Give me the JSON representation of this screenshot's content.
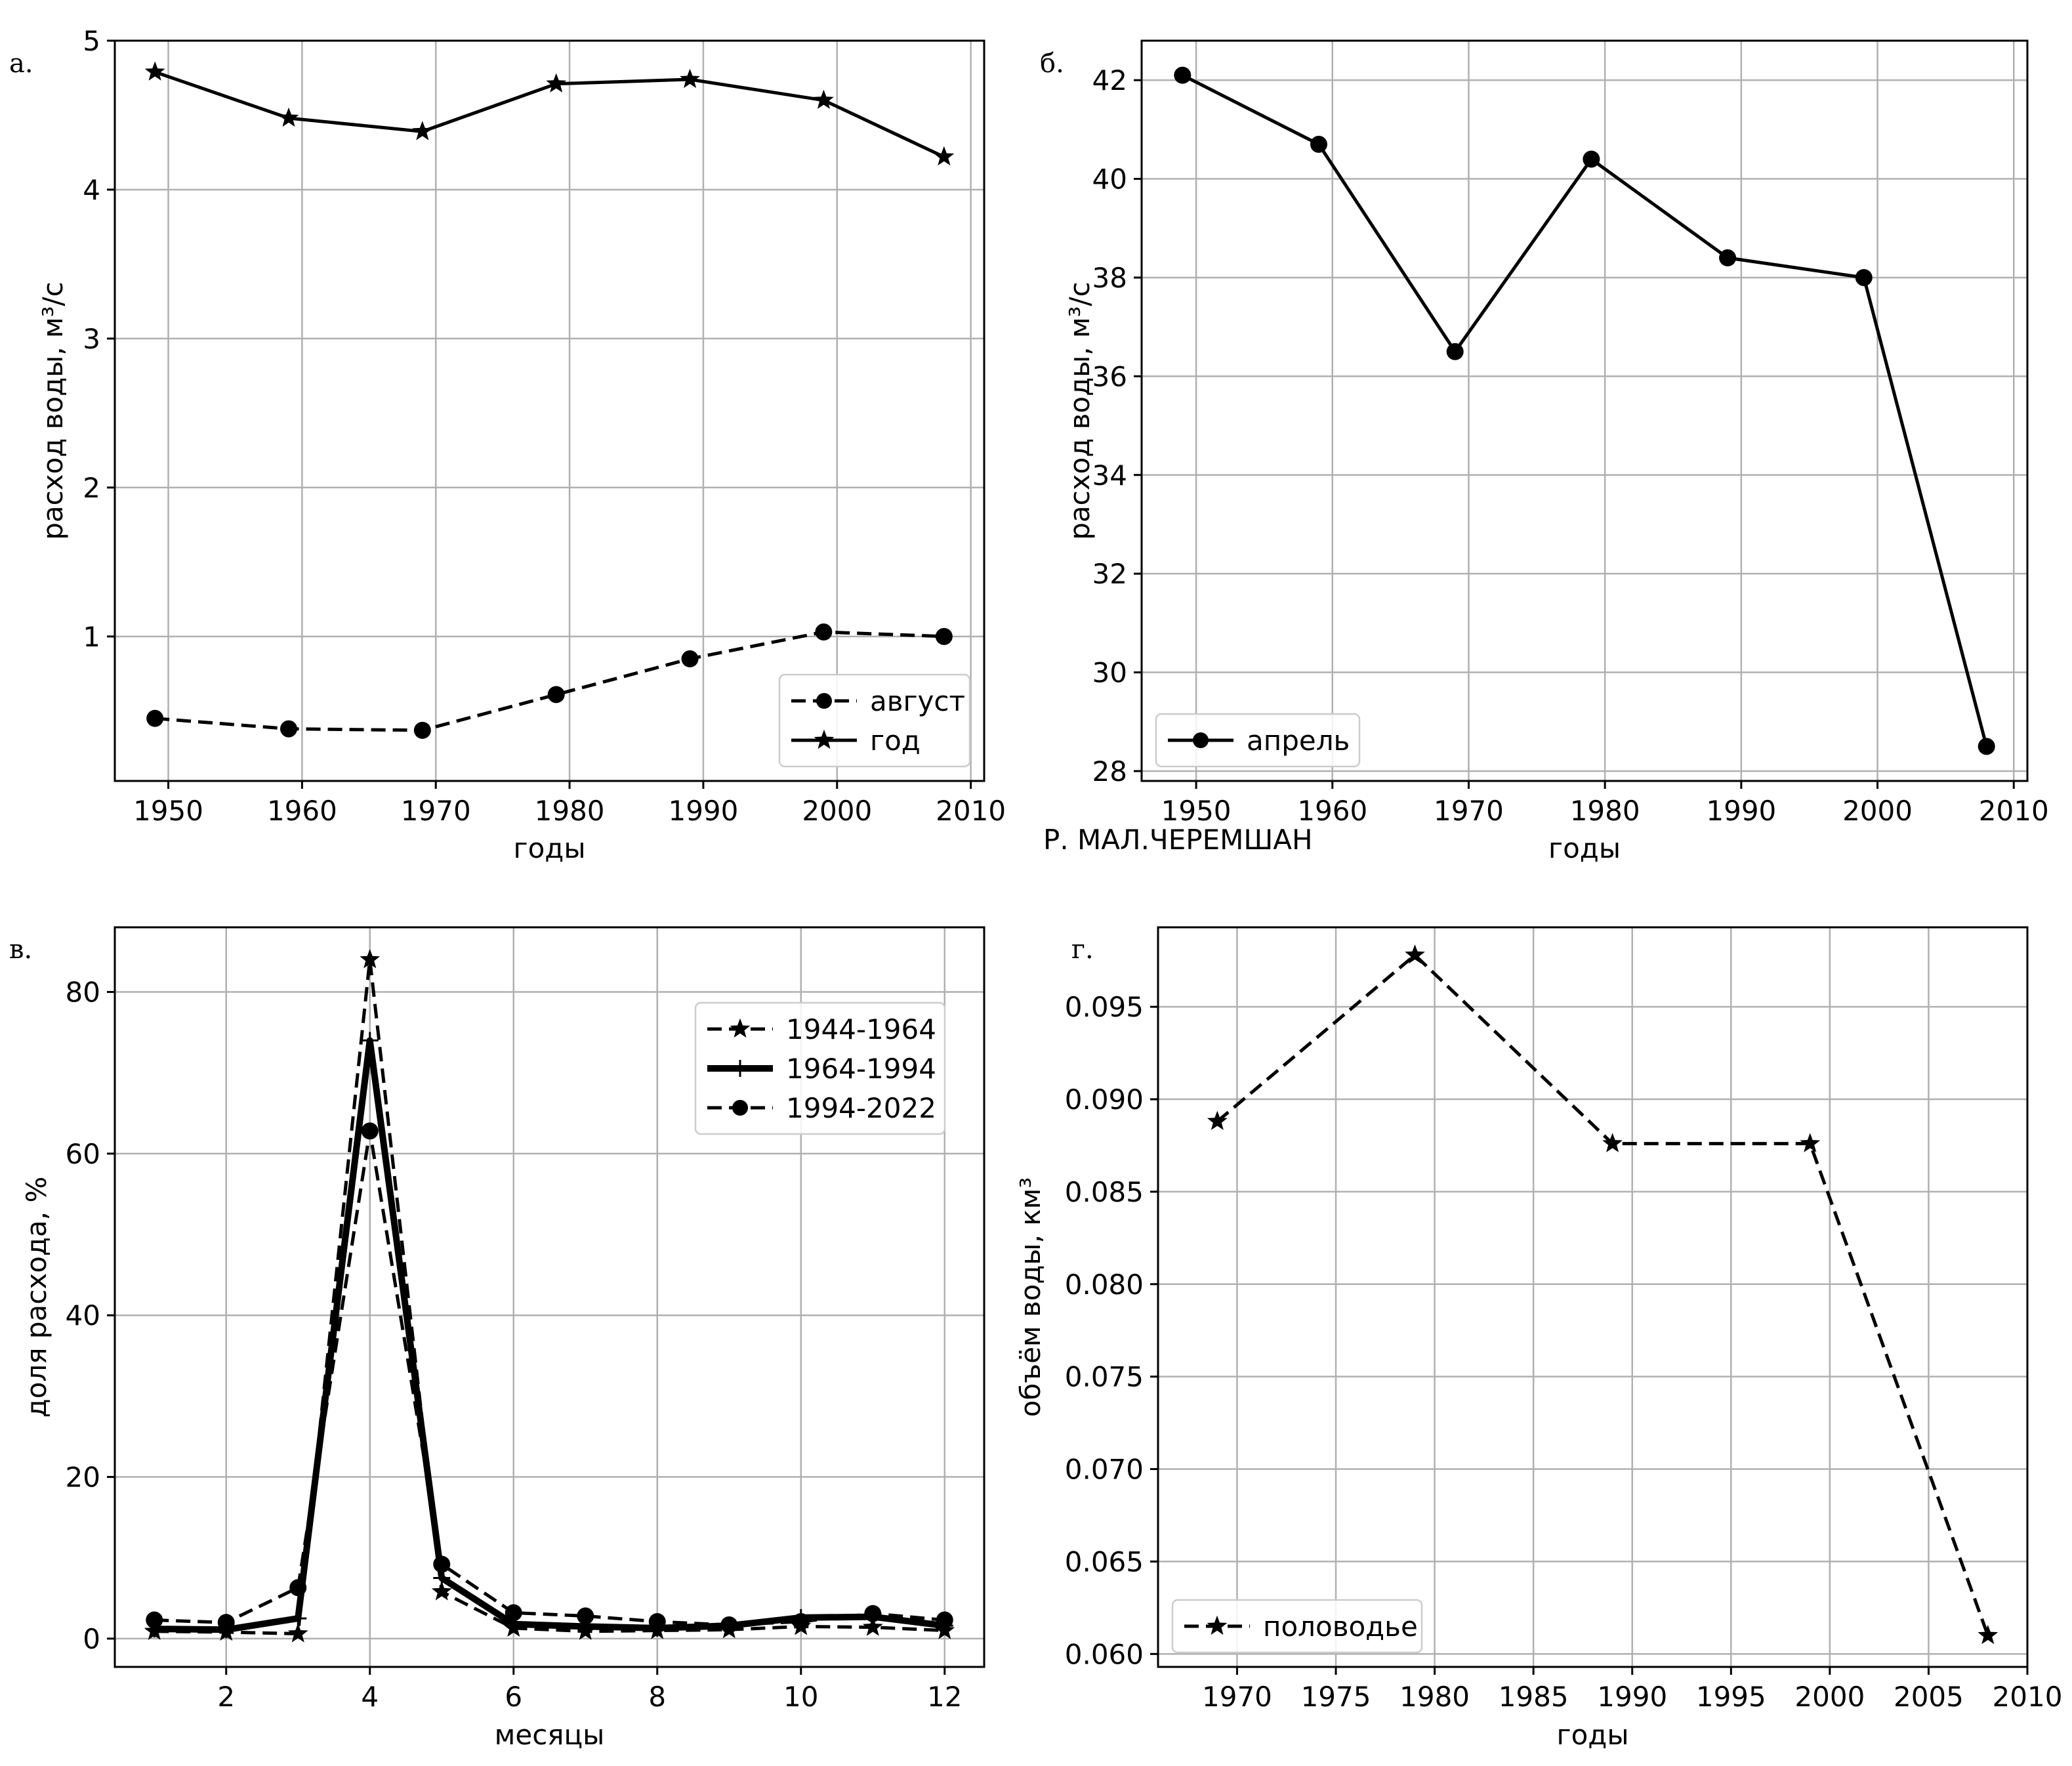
{
  "figure_note": "Р. МАЛ.ЧЕРЕМШАН",
  "chart_data": [
    {
      "id": "a",
      "panel_label": "а.",
      "type": "line",
      "xlabel": "годы",
      "ylabel": "расход воды, м³/с",
      "xlim": [
        1946,
        2011
      ],
      "ylim": [
        0.03,
        5
      ],
      "xticks": [
        1950,
        1960,
        1970,
        1980,
        1990,
        2000,
        2010
      ],
      "yticks": [
        1,
        2,
        3,
        4,
        5
      ],
      "legend_position": "lower-right",
      "series": [
        {
          "name": "август",
          "style": "dashed",
          "marker": "circle",
          "x": [
            1949,
            1959,
            1969,
            1979,
            1989,
            1999,
            2008
          ],
          "values": [
            0.45,
            0.38,
            0.37,
            0.61,
            0.85,
            1.03,
            1.0
          ]
        },
        {
          "name": "год",
          "style": "solid",
          "marker": "star",
          "x": [
            1949,
            1959,
            1969,
            1979,
            1989,
            1999,
            2008
          ],
          "values": [
            4.79,
            4.48,
            4.39,
            4.71,
            4.74,
            4.6,
            4.22
          ]
        }
      ]
    },
    {
      "id": "b",
      "panel_label": "б.",
      "type": "line",
      "xlabel": "годы",
      "ylabel": "расход воды, м³/с",
      "xlim": [
        1946,
        2011
      ],
      "ylim": [
        27.8,
        42.8
      ],
      "xticks": [
        1950,
        1960,
        1970,
        1980,
        1990,
        2000,
        2010
      ],
      "yticks": [
        28,
        30,
        32,
        34,
        36,
        38,
        40,
        42
      ],
      "legend_position": "lower-left",
      "series": [
        {
          "name": "апрель",
          "style": "solid",
          "marker": "circle",
          "x": [
            1949,
            1959,
            1969,
            1979,
            1989,
            1999,
            2008
          ],
          "values": [
            42.1,
            40.7,
            36.5,
            40.4,
            38.4,
            38.0,
            28.5
          ]
        }
      ]
    },
    {
      "id": "c",
      "panel_label": "в.",
      "type": "line",
      "xlabel": "месяцы",
      "ylabel": "доля расхода, %",
      "xlim": [
        0.45,
        12.55
      ],
      "ylim": [
        -3.5,
        88
      ],
      "xticks": [
        2,
        4,
        6,
        8,
        10,
        12
      ],
      "yticks": [
        0,
        20,
        40,
        60,
        80
      ],
      "legend_position": "upper-right",
      "series": [
        {
          "name": "1944-1964",
          "style": "dashed",
          "marker": "star",
          "x": [
            1,
            2,
            3,
            4,
            5,
            6,
            7,
            8,
            9,
            10,
            11,
            12
          ],
          "values": [
            0.9,
            0.8,
            0.6,
            84.0,
            5.8,
            1.3,
            0.9,
            1.0,
            1.1,
            1.5,
            1.4,
            1.0
          ]
        },
        {
          "name": "1964-1994",
          "style": "thick",
          "marker": "plus",
          "x": [
            1,
            2,
            3,
            4,
            5,
            6,
            7,
            8,
            9,
            10,
            11,
            12
          ],
          "values": [
            1.2,
            1.1,
            2.5,
            74.0,
            7.5,
            1.8,
            1.5,
            1.3,
            1.6,
            2.6,
            2.7,
            1.6
          ]
        },
        {
          "name": "1994-2022",
          "style": "dashed",
          "marker": "circle",
          "x": [
            1,
            2,
            3,
            4,
            5,
            6,
            7,
            8,
            9,
            10,
            11,
            12
          ],
          "values": [
            2.3,
            2.0,
            6.3,
            62.8,
            9.2,
            3.2,
            2.8,
            2.1,
            1.7,
            2.1,
            3.1,
            2.3
          ]
        }
      ]
    },
    {
      "id": "d",
      "panel_label": "г.",
      "type": "line",
      "xlabel": "годы",
      "ylabel": "объём воды, км³",
      "xlim": [
        1966,
        2010
      ],
      "ylim": [
        0.0593,
        0.0993
      ],
      "xticks": [
        1970,
        1975,
        1980,
        1985,
        1990,
        1995,
        2000,
        2005,
        2010
      ],
      "yticks": [
        0.06,
        0.065,
        0.07,
        0.075,
        0.08,
        0.085,
        0.09,
        0.095
      ],
      "ytick_labels": [
        "0.060",
        "0.065",
        "0.070",
        "0.075",
        "0.080",
        "0.085",
        "0.090",
        "0.095"
      ],
      "legend_position": "lower-left",
      "series": [
        {
          "name": "половодье",
          "style": "dashed",
          "marker": "star",
          "x": [
            1969,
            1979,
            1989,
            1999,
            2008
          ],
          "values": [
            0.0888,
            0.0978,
            0.0876,
            0.0876,
            0.061
          ]
        }
      ]
    }
  ]
}
